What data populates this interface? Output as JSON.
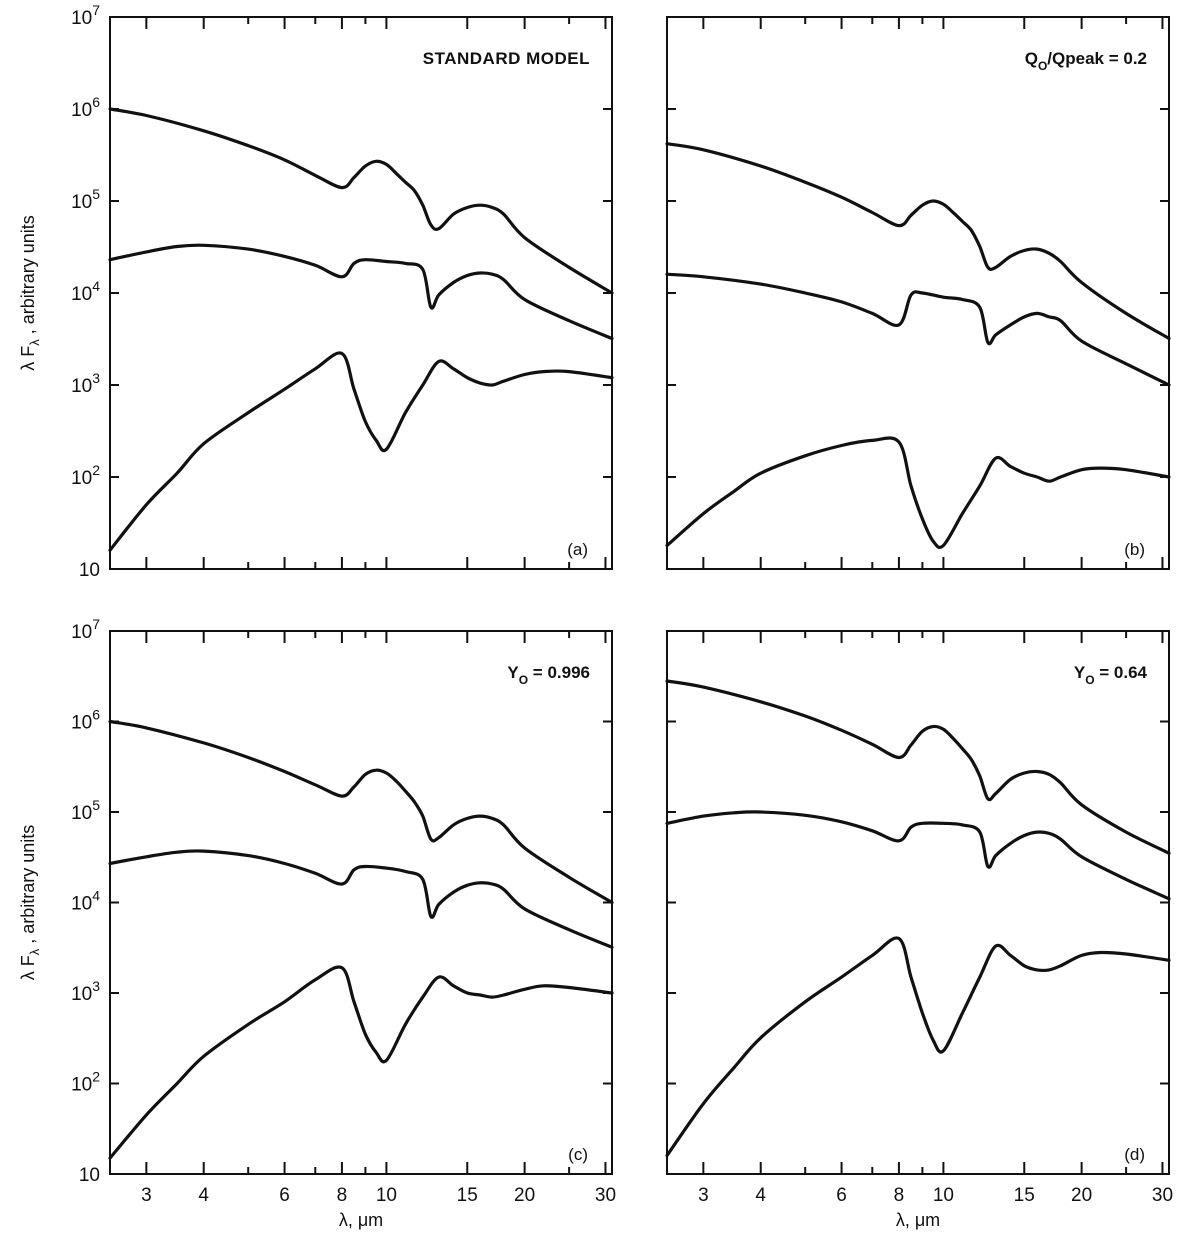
{
  "chart_data": [
    {
      "type": "line",
      "panel_label": "(a)",
      "annotation": "STANDARD MODEL",
      "annotation_parts": null,
      "ylabel": "λ F_λ , arbitrary units",
      "xlabel": "",
      "x_scale": "log",
      "y_scale": "log",
      "xlim": [
        2.5,
        31
      ],
      "ylim": [
        10,
        10000000
      ],
      "x_tick_labels": [],
      "y_tick_labels": [
        "10",
        "10^2",
        "10^3",
        "10^4",
        "10^5",
        "10^6",
        "10^7"
      ],
      "series": [
        {
          "x": [
            2.5,
            3,
            4,
            5,
            6,
            7,
            8,
            8.5,
            9,
            9.5,
            10,
            10.5,
            11,
            11.5,
            12,
            12.5,
            13,
            14,
            15,
            16,
            17,
            18,
            20,
            25,
            31
          ],
          "y": [
            1000000,
            850000,
            580000,
            400000,
            280000,
            190000,
            140000,
            180000,
            240000,
            270000,
            250000,
            200000,
            160000,
            130000,
            90000,
            55000,
            50000,
            72000,
            85000,
            90000,
            85000,
            72000,
            40000,
            19000,
            10000
          ]
        },
        {
          "x": [
            2.5,
            3,
            3.5,
            4,
            5,
            6,
            7,
            8,
            8.5,
            9,
            10,
            11,
            12,
            12.5,
            13,
            14,
            15,
            16,
            17,
            18,
            20,
            25,
            31
          ],
          "y": [
            23000,
            28000,
            32000,
            33000,
            30000,
            25000,
            20000,
            15000,
            21000,
            23000,
            22000,
            21000,
            18000,
            7000,
            9500,
            13000,
            15500,
            16500,
            16000,
            14000,
            8500,
            5000,
            3200
          ]
        },
        {
          "x": [
            2.5,
            3,
            3.5,
            4,
            5,
            6,
            7,
            8,
            8.5,
            9,
            9.5,
            10,
            11,
            12,
            13,
            14,
            15,
            16,
            17,
            18,
            20,
            22,
            25,
            31
          ],
          "y": [
            16,
            50,
            110,
            230,
            500,
            900,
            1500,
            2200,
            900,
            400,
            250,
            200,
            500,
            1000,
            1800,
            1500,
            1200,
            1050,
            1000,
            1100,
            1300,
            1400,
            1400,
            1200
          ]
        }
      ]
    },
    {
      "type": "line",
      "panel_label": "(b)",
      "annotation": "",
      "annotation_parts": {
        "q": "Q",
        "q_sub": "O",
        "rest": "/Qpeak = 0.2"
      },
      "ylabel": "",
      "xlabel": "",
      "x_scale": "log",
      "y_scale": "log",
      "xlim": [
        2.5,
        31
      ],
      "ylim": [
        10,
        10000000
      ],
      "x_tick_labels": [],
      "y_tick_labels": [],
      "series": [
        {
          "x": [
            2.5,
            3,
            4,
            5,
            6,
            7,
            8,
            8.5,
            9,
            9.5,
            10,
            10.5,
            11,
            11.5,
            12,
            12.5,
            13,
            14,
            15,
            16,
            17,
            18,
            20,
            25,
            31
          ],
          "y": [
            420000,
            360000,
            240000,
            160000,
            110000,
            75000,
            54000,
            70000,
            90000,
            100000,
            92000,
            75000,
            60000,
            48000,
            32000,
            19000,
            19000,
            25000,
            29000,
            30000,
            27000,
            22000,
            13000,
            6000,
            3200
          ]
        },
        {
          "x": [
            2.5,
            3,
            4,
            5,
            6,
            7,
            8,
            8.5,
            9,
            10,
            11,
            12,
            12.5,
            13,
            14,
            15,
            16,
            17,
            18,
            20,
            25,
            31
          ],
          "y": [
            16000,
            15000,
            12500,
            10000,
            8000,
            6000,
            4500,
            9500,
            10000,
            9000,
            8500,
            7000,
            2900,
            3500,
            4500,
            5500,
            6000,
            5500,
            5000,
            3000,
            1700,
            1000
          ]
        },
        {
          "x": [
            2.5,
            3,
            3.5,
            4,
            5,
            6,
            7,
            8,
            8.5,
            9,
            9.5,
            10,
            11,
            12,
            13,
            14,
            15,
            16,
            17,
            18,
            20,
            22,
            25,
            31
          ],
          "y": [
            18,
            40,
            70,
            110,
            170,
            220,
            250,
            240,
            80,
            35,
            20,
            18,
            40,
            80,
            160,
            130,
            110,
            100,
            90,
            100,
            120,
            125,
            120,
            100
          ]
        }
      ]
    },
    {
      "type": "line",
      "panel_label": "(c)",
      "annotation": "",
      "annotation_parts": {
        "q": "Y",
        "q_sub": "O",
        "rest": " = 0.996"
      },
      "ylabel": "λ F_λ , arbitrary units",
      "xlabel": "λ, μm",
      "x_scale": "log",
      "y_scale": "log",
      "xlim": [
        2.5,
        31
      ],
      "ylim": [
        10,
        10000000
      ],
      "x_tick_labels": [
        "3",
        "4",
        "6",
        "8",
        "10",
        "15",
        "20",
        "30"
      ],
      "y_tick_labels": [
        "10",
        "10^2",
        "10^3",
        "10^4",
        "10^5",
        "10^6",
        "10^7"
      ],
      "series": [
        {
          "x": [
            2.5,
            3,
            4,
            5,
            6,
            7,
            8,
            8.5,
            9,
            9.5,
            10,
            10.5,
            11,
            11.5,
            12,
            12.5,
            13,
            14,
            15,
            16,
            17,
            18,
            20,
            25,
            31
          ],
          "y": [
            1000000,
            850000,
            580000,
            400000,
            280000,
            200000,
            150000,
            190000,
            260000,
            290000,
            270000,
            220000,
            170000,
            130000,
            90000,
            50000,
            52000,
            72000,
            85000,
            90000,
            85000,
            72000,
            40000,
            19000,
            10000
          ]
        },
        {
          "x": [
            2.5,
            3,
            3.5,
            4,
            5,
            6,
            7,
            8,
            8.5,
            9,
            10,
            11,
            12,
            12.5,
            13,
            14,
            15,
            16,
            17,
            18,
            20,
            25,
            31
          ],
          "y": [
            27000,
            32000,
            36000,
            37000,
            33000,
            27000,
            21000,
            16000,
            23000,
            25000,
            24000,
            22000,
            18000,
            7000,
            9500,
            13000,
            15500,
            16500,
            16000,
            14000,
            8500,
            5000,
            3200
          ]
        },
        {
          "x": [
            2.5,
            3,
            3.5,
            4,
            5,
            6,
            7,
            8,
            8.5,
            9,
            9.5,
            10,
            11,
            12,
            13,
            14,
            15,
            16,
            17,
            18,
            20,
            22,
            25,
            31
          ],
          "y": [
            15,
            45,
            100,
            200,
            450,
            800,
            1400,
            1900,
            800,
            350,
            220,
            180,
            450,
            900,
            1500,
            1200,
            1000,
            950,
            900,
            950,
            1100,
            1200,
            1150,
            1000
          ]
        }
      ]
    },
    {
      "type": "line",
      "panel_label": "(d)",
      "annotation": "",
      "annotation_parts": {
        "q": "Y",
        "q_sub": "O",
        "rest": " = 0.64"
      },
      "ylabel": "",
      "xlabel": "λ, μm",
      "x_scale": "log",
      "y_scale": "log",
      "xlim": [
        2.5,
        31
      ],
      "ylim": [
        10,
        10000000
      ],
      "x_tick_labels": [
        "3",
        "4",
        "6",
        "8",
        "10",
        "15",
        "20",
        "30"
      ],
      "y_tick_labels": [],
      "series": [
        {
          "x": [
            2.5,
            3,
            4,
            5,
            6,
            7,
            8,
            8.5,
            9,
            9.5,
            10,
            10.5,
            11,
            11.5,
            12,
            12.5,
            13,
            14,
            15,
            16,
            17,
            18,
            20,
            25,
            31
          ],
          "y": [
            2800000,
            2400000,
            1650000,
            1150000,
            800000,
            560000,
            400000,
            550000,
            780000,
            880000,
            820000,
            650000,
            500000,
            380000,
            250000,
            140000,
            160000,
            230000,
            270000,
            280000,
            260000,
            210000,
            120000,
            60000,
            35000
          ]
        },
        {
          "x": [
            2.5,
            3,
            3.5,
            4,
            5,
            6,
            7,
            8,
            8.5,
            9,
            10,
            11,
            12,
            12.5,
            13,
            14,
            15,
            16,
            17,
            18,
            20,
            25,
            31
          ],
          "y": [
            75000,
            90000,
            98000,
            100000,
            92000,
            78000,
            62000,
            48000,
            68000,
            75000,
            75000,
            72000,
            60000,
            25000,
            33000,
            45000,
            55000,
            60000,
            58000,
            50000,
            32000,
            18000,
            11000
          ]
        },
        {
          "x": [
            2.5,
            3,
            3.5,
            4,
            5,
            6,
            7,
            8,
            8.5,
            9,
            9.5,
            10,
            11,
            12,
            13,
            14,
            15,
            16,
            17,
            18,
            20,
            22,
            25,
            31
          ],
          "y": [
            16,
            60,
            150,
            320,
            800,
            1500,
            2600,
            4000,
            1500,
            600,
            300,
            230,
            600,
            1500,
            3300,
            2600,
            2000,
            1800,
            1800,
            2000,
            2600,
            2800,
            2700,
            2300
          ]
        }
      ]
    }
  ]
}
